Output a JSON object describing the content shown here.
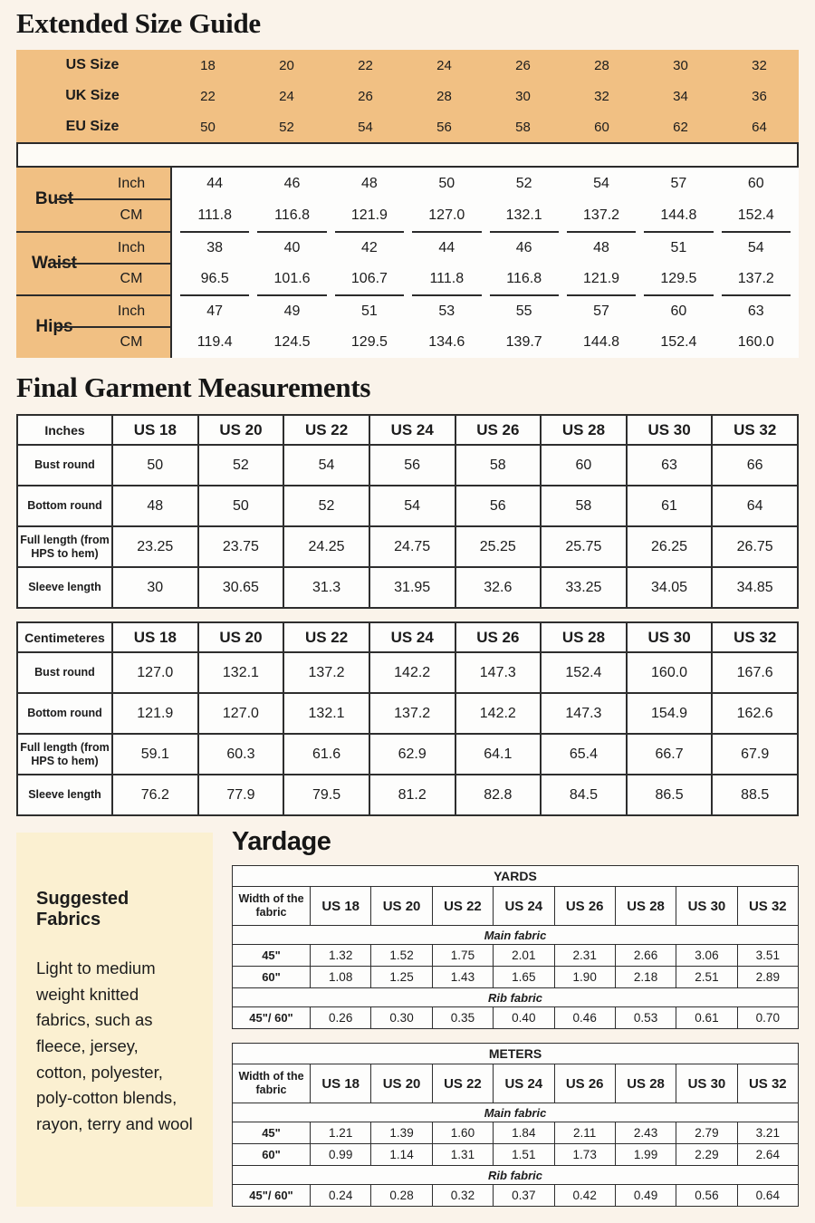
{
  "colors": {
    "page_bg": "#faf3ea",
    "accent_orange": "#f1c083",
    "fabric_box_bg": "#fbf0d1",
    "table_bg": "#fdfdfc",
    "border": "#2b2b2b"
  },
  "extended_size_guide": {
    "title": "Extended Size Guide",
    "conversion_rows": [
      {
        "label": "US Size",
        "values": [
          "18",
          "20",
          "22",
          "24",
          "26",
          "28",
          "30",
          "32"
        ]
      },
      {
        "label": "UK Size",
        "values": [
          "22",
          "24",
          "26",
          "28",
          "30",
          "32",
          "34",
          "36"
        ]
      },
      {
        "label": "EU Size",
        "values": [
          "50",
          "52",
          "54",
          "56",
          "58",
          "60",
          "62",
          "64"
        ]
      }
    ]
  },
  "body_measurements": {
    "unit_labels": [
      "Inch",
      "CM"
    ],
    "groups": [
      {
        "name": "Bust",
        "inch": [
          "44",
          "46",
          "48",
          "50",
          "52",
          "54",
          "57",
          "60"
        ],
        "cm": [
          "111.8",
          "116.8",
          "121.9",
          "127.0",
          "132.1",
          "137.2",
          "144.8",
          "152.4"
        ]
      },
      {
        "name": "Waist",
        "inch": [
          "38",
          "40",
          "42",
          "44",
          "46",
          "48",
          "51",
          "54"
        ],
        "cm": [
          "96.5",
          "101.6",
          "106.7",
          "111.8",
          "116.8",
          "121.9",
          "129.5",
          "137.2"
        ]
      },
      {
        "name": "Hips",
        "inch": [
          "47",
          "49",
          "51",
          "53",
          "55",
          "57",
          "60",
          "63"
        ],
        "cm": [
          "119.4",
          "124.5",
          "129.5",
          "134.6",
          "139.7",
          "144.8",
          "152.4",
          "160.0"
        ]
      }
    ]
  },
  "final_garment": {
    "title": "Final Garment Measurements",
    "tables": [
      {
        "unit": "Inches",
        "columns": [
          "US 18",
          "US 20",
          "US 22",
          "US 24",
          "US 26",
          "US 28",
          "US 30",
          "US 32"
        ],
        "rows": [
          {
            "label": "Bust round",
            "values": [
              "50",
              "52",
              "54",
              "56",
              "58",
              "60",
              "63",
              "66"
            ]
          },
          {
            "label": "Bottom round",
            "values": [
              "48",
              "50",
              "52",
              "54",
              "56",
              "58",
              "61",
              "64"
            ]
          },
          {
            "label": "Full length (from HPS to hem)",
            "values": [
              "23.25",
              "23.75",
              "24.25",
              "24.75",
              "25.25",
              "25.75",
              "26.25",
              "26.75"
            ]
          },
          {
            "label": "Sleeve length",
            "values": [
              "30",
              "30.65",
              "31.3",
              "31.95",
              "32.6",
              "33.25",
              "34.05",
              "34.85"
            ]
          }
        ]
      },
      {
        "unit": "Centimeteres",
        "columns": [
          "US 18",
          "US 20",
          "US 22",
          "US 24",
          "US 26",
          "US 28",
          "US 30",
          "US 32"
        ],
        "rows": [
          {
            "label": "Bust round",
            "values": [
              "127.0",
              "132.1",
              "137.2",
              "142.2",
              "147.3",
              "152.4",
              "160.0",
              "167.6"
            ]
          },
          {
            "label": "Bottom round",
            "values": [
              "121.9",
              "127.0",
              "132.1",
              "137.2",
              "142.2",
              "147.3",
              "154.9",
              "162.6"
            ]
          },
          {
            "label": "Full length (from HPS to hem)",
            "values": [
              "59.1",
              "60.3",
              "61.6",
              "62.9",
              "64.1",
              "65.4",
              "66.7",
              "67.9"
            ]
          },
          {
            "label": "Sleeve length",
            "values": [
              "76.2",
              "77.9",
              "79.5",
              "81.2",
              "82.8",
              "84.5",
              "86.5",
              "88.5"
            ]
          }
        ]
      }
    ]
  },
  "yardage": {
    "title": "Yardage",
    "suggested_fabrics": {
      "heading": "Suggested Fabrics",
      "text": "Light to medium weight knitted fabrics, such as fleece, jersey, cotton, polyester, poly-cotton blends, rayon, terry and wool"
    },
    "tables": [
      {
        "header": "YARDS",
        "col0": "Width of the fabric",
        "columns": [
          "US 18",
          "US 20",
          "US 22",
          "US 24",
          "US 26",
          "US 28",
          "US 30",
          "US 32"
        ],
        "sections": [
          {
            "label": "Main fabric",
            "rows": [
              {
                "label": "45\"",
                "values": [
                  "1.32",
                  "1.52",
                  "1.75",
                  "2.01",
                  "2.31",
                  "2.66",
                  "3.06",
                  "3.51"
                ]
              },
              {
                "label": "60\"",
                "values": [
                  "1.08",
                  "1.25",
                  "1.43",
                  "1.65",
                  "1.90",
                  "2.18",
                  "2.51",
                  "2.89"
                ]
              }
            ]
          },
          {
            "label": "Rib fabric",
            "rows": [
              {
                "label": "45\"/ 60\"",
                "values": [
                  "0.26",
                  "0.30",
                  "0.35",
                  "0.40",
                  "0.46",
                  "0.53",
                  "0.61",
                  "0.70"
                ]
              }
            ]
          }
        ]
      },
      {
        "header": "METERS",
        "col0": "Width of the fabric",
        "columns": [
          "US 18",
          "US 20",
          "US 22",
          "US 24",
          "US 26",
          "US 28",
          "US 30",
          "US 32"
        ],
        "sections": [
          {
            "label": "Main fabric",
            "rows": [
              {
                "label": "45\"",
                "values": [
                  "1.21",
                  "1.39",
                  "1.60",
                  "1.84",
                  "2.11",
                  "2.43",
                  "2.79",
                  "3.21"
                ]
              },
              {
                "label": "60\"",
                "values": [
                  "0.99",
                  "1.14",
                  "1.31",
                  "1.51",
                  "1.73",
                  "1.99",
                  "2.29",
                  "2.64"
                ]
              }
            ]
          },
          {
            "label": "Rib fabric",
            "rows": [
              {
                "label": "45\"/ 60\"",
                "values": [
                  "0.24",
                  "0.28",
                  "0.32",
                  "0.37",
                  "0.42",
                  "0.49",
                  "0.56",
                  "0.64"
                ]
              }
            ]
          }
        ]
      }
    ]
  }
}
